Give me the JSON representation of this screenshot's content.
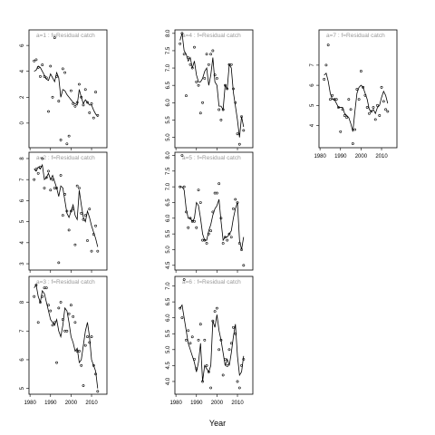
{
  "x_label": "Year",
  "chart_data": [
    {
      "type": "line",
      "title": "a=1 : f=Residual catch",
      "x": [
        1982,
        1983,
        1984,
        1985,
        1986,
        1987,
        1988,
        1989,
        1990,
        1991,
        1992,
        1993,
        1994,
        1995,
        1996,
        1997,
        1998,
        1999,
        2000,
        2001,
        2002,
        2003,
        2004,
        2005,
        2006,
        2007,
        2008,
        2009,
        2010,
        2011,
        2012,
        2013
      ],
      "points": [
        4.8,
        4.9,
        4.3,
        3.6,
        4.5,
        3.6,
        3.5,
        0.9,
        4.4,
        2.0,
        6.6,
        3.6,
        1.7,
        -1.3,
        4.2,
        3.9,
        -1.6,
        -1.0,
        2.5,
        1.5,
        1.3,
        1.6,
        3.0,
        2.0,
        1.4,
        2.6,
        1.6,
        0.8,
        1.5,
        0.4,
        2.4,
        0.6
      ],
      "fit": [
        4.0,
        4.1,
        4.4,
        4.3,
        4.0,
        3.7,
        3.4,
        3.3,
        3.8,
        3.5,
        3.2,
        3.9,
        3.5,
        2.0,
        2.6,
        2.5,
        2.2,
        2.0,
        1.8,
        1.6,
        1.5,
        1.4,
        2.6,
        2.0,
        1.5,
        1.8,
        1.6,
        1.4,
        1.4,
        1.0,
        0.7,
        0.5
      ],
      "xlim": [
        1979.5,
        2017.5
      ],
      "xticks": [
        1980,
        1990,
        2000,
        2010
      ],
      "ylim": [
        -1.9,
        7.2
      ],
      "yticks": [
        0,
        2,
        4,
        6
      ]
    },
    {
      "type": "line",
      "title": "a=2 : f=Residual catch",
      "x": [
        1982,
        1983,
        1984,
        1985,
        1986,
        1987,
        1988,
        1989,
        1990,
        1991,
        1992,
        1993,
        1994,
        1995,
        1996,
        1997,
        1998,
        1999,
        2000,
        2001,
        2002,
        2003,
        2004,
        2005,
        2006,
        2007,
        2008,
        2009,
        2010,
        2011,
        2012,
        2013
      ],
      "points": [
        7.0,
        7.5,
        7.3,
        7.6,
        8.0,
        6.6,
        7.1,
        7.4,
        6.5,
        7.0,
        6.6,
        6.6,
        3.05,
        7.2,
        5.3,
        6.3,
        5.5,
        4.6,
        5.5,
        5.6,
        3.9,
        6.7,
        6.6,
        5.4,
        5.1,
        5.3,
        4.1,
        5.6,
        3.6,
        4.4,
        4.8,
        3.6
      ],
      "fit": [
        7.5,
        7.4,
        7.6,
        7.5,
        7.7,
        7.0,
        7.1,
        7.3,
        7.0,
        7.2,
        6.9,
        6.6,
        6.2,
        6.7,
        6.6,
        6.0,
        5.4,
        5.2,
        5.5,
        5.8,
        5.3,
        5.1,
        6.5,
        5.8,
        5.2,
        5.0,
        5.5,
        5.2,
        4.8,
        4.5,
        4.2,
        3.8
      ],
      "xlim": [
        1979.5,
        2017.5
      ],
      "xticks": [
        1980,
        1990,
        2000,
        2010
      ],
      "ylim": [
        2.7,
        8.3
      ],
      "yticks": [
        3,
        4,
        5,
        6,
        7,
        8
      ]
    },
    {
      "type": "line",
      "title": "a=3 : f=Residual catch",
      "x": [
        1982,
        1983,
        1984,
        1985,
        1986,
        1987,
        1988,
        1989,
        1990,
        1991,
        1992,
        1993,
        1994,
        1995,
        1996,
        1997,
        1998,
        1999,
        2000,
        2001,
        2002,
        2003,
        2004,
        2005,
        2006,
        2007,
        2008,
        2009,
        2010,
        2011,
        2012,
        2013
      ],
      "points": [
        8.2,
        8.6,
        7.3,
        8.0,
        8.2,
        8.5,
        8.5,
        7.9,
        7.7,
        7.2,
        7.3,
        5.9,
        7.8,
        8.0,
        7.4,
        7.0,
        7.0,
        7.6,
        7.9,
        7.5,
        7.3,
        6.3,
        6.3,
        5.8,
        5.1,
        6.5,
        6.8,
        6.6,
        6.8,
        5.8,
        5.5,
        4.9
      ],
      "fit": [
        8.5,
        8.6,
        8.2,
        8.0,
        8.4,
        8.3,
        8.0,
        7.7,
        7.4,
        7.3,
        7.2,
        7.4,
        7.0,
        6.8,
        7.2,
        7.8,
        7.7,
        7.3,
        6.8,
        6.6,
        6.3,
        6.4,
        5.9,
        6.0,
        6.5,
        7.0,
        7.3,
        6.8,
        6.0,
        5.8,
        5.6,
        5.0
      ],
      "xlim": [
        1979.5,
        2017.5
      ],
      "xticks": [
        1980,
        1990,
        2000,
        2010
      ],
      "ylim": [
        4.8,
        8.9
      ],
      "yticks": [
        5,
        6,
        7,
        8
      ]
    },
    {
      "type": "line",
      "title": "a=4 : f=Residual catch",
      "x": [
        1982,
        1983,
        1984,
        1985,
        1986,
        1987,
        1988,
        1989,
        1990,
        1991,
        1992,
        1993,
        1994,
        1995,
        1996,
        1997,
        1998,
        1999,
        2000,
        2001,
        2002,
        2003,
        2004,
        2005,
        2006,
        2007,
        2008,
        2009,
        2010,
        2011,
        2012,
        2013
      ],
      "points": [
        7.7,
        8.0,
        7.4,
        6.2,
        7.3,
        7.1,
        7.0,
        7.6,
        6.6,
        6.5,
        5.7,
        6.0,
        6.7,
        7.4,
        7.1,
        7.4,
        7.5,
        6.8,
        6.7,
        5.8,
        5.5,
        5.8,
        6.5,
        6.4,
        7.1,
        7.1,
        6.4,
        6.0,
        5.1,
        4.8,
        5.6,
        5.2
      ],
      "fit": [
        7.8,
        8.0,
        7.5,
        7.4,
        7.2,
        7.3,
        7.0,
        7.2,
        6.8,
        6.6,
        6.6,
        6.7,
        6.9,
        7.0,
        6.5,
        6.8,
        7.3,
        6.6,
        6.5,
        5.9,
        5.9,
        5.8,
        6.5,
        6.4,
        7.1,
        7.0,
        6.3,
        5.9,
        5.5,
        5.0,
        5.6,
        5.3
      ],
      "xlim": [
        1979.5,
        2017.5
      ],
      "xticks": [
        1980,
        1990,
        2000,
        2010
      ],
      "ylim": [
        4.7,
        8.1
      ],
      "yticks": [
        {
          "value": 5,
          "label": "5.0"
        },
        5.5,
        {
          "value": 6,
          "label": "6.0"
        },
        6.5,
        {
          "value": 7,
          "label": "7.0"
        },
        7.5,
        {
          "value": 8,
          "label": "8.0"
        }
      ]
    },
    {
      "type": "line",
      "title": "a=5 : f=Residual catch",
      "x": [
        1982,
        1983,
        1984,
        1985,
        1986,
        1987,
        1988,
        1989,
        1990,
        1991,
        1992,
        1993,
        1994,
        1995,
        1996,
        1997,
        1998,
        1999,
        2000,
        2001,
        2002,
        2003,
        2004,
        2005,
        2006,
        2007,
        2008,
        2009,
        2010,
        2011,
        2012,
        2013
      ],
      "points": [
        7.0,
        8.0,
        7.0,
        6.2,
        5.7,
        6.0,
        5.9,
        5.9,
        5.7,
        6.9,
        6.5,
        5.3,
        5.3,
        5.2,
        5.5,
        5.6,
        6.2,
        6.8,
        6.8,
        7.1,
        6.0,
        5.2,
        5.4,
        5.3,
        5.5,
        5.4,
        6.3,
        6.6,
        6.5,
        5.2,
        5.0,
        4.5
      ],
      "fit": [
        7.0,
        7.0,
        6.9,
        6.3,
        6.0,
        6.0,
        5.9,
        6.0,
        6.5,
        6.4,
        6.0,
        5.5,
        5.3,
        5.3,
        5.6,
        5.8,
        6.1,
        6.3,
        6.4,
        6.6,
        5.9,
        5.3,
        5.4,
        5.4,
        5.5,
        5.6,
        6.0,
        6.3,
        6.5,
        5.3,
        5.0,
        5.4
      ],
      "xlim": [
        1979.5,
        2017.5
      ],
      "xticks": [
        1980,
        1990,
        2000,
        2010
      ],
      "ylim": [
        4.35,
        8.1
      ],
      "yticks": [
        4.5,
        {
          "value": 5,
          "label": "5.0"
        },
        5.5,
        {
          "value": 6,
          "label": "6.0"
        },
        6.5,
        {
          "value": 7,
          "label": "7.0"
        },
        7.5,
        {
          "value": 8,
          "label": "8.0"
        }
      ]
    },
    {
      "type": "line",
      "title": "a=6 : f=Residual catch",
      "x": [
        1982,
        1983,
        1984,
        1985,
        1986,
        1987,
        1988,
        1989,
        1990,
        1991,
        1992,
        1993,
        1994,
        1995,
        1996,
        1997,
        1998,
        1999,
        2000,
        2001,
        2002,
        2003,
        2004,
        2005,
        2006,
        2007,
        2008,
        2009,
        2010,
        2011,
        2012,
        2013
      ],
      "points": [
        6.3,
        6.0,
        7.2,
        5.3,
        5.6,
        5.2,
        5.4,
        4.7,
        4.4,
        5.3,
        5.8,
        4.0,
        5.3,
        4.5,
        4.3,
        3.8,
        5.9,
        6.2,
        6.3,
        5.0,
        5.3,
        4.2,
        4.7,
        4.5,
        5.0,
        5.2,
        5.7,
        5.5,
        4.0,
        3.8,
        4.5,
        4.7
      ],
      "fit": [
        6.3,
        6.4,
        6.0,
        5.6,
        5.2,
        5.0,
        4.8,
        4.6,
        4.3,
        4.6,
        5.2,
        4.0,
        4.5,
        4.4,
        4.3,
        4.5,
        5.9,
        5.7,
        6.1,
        5.6,
        5.3,
        4.9,
        4.5,
        4.7,
        4.5,
        4.9,
        5.4,
        5.8,
        4.8,
        4.2,
        4.3,
        4.8
      ],
      "xlim": [
        1979.5,
        2017.5
      ],
      "xticks": [
        1980,
        1990,
        2000,
        2010
      ],
      "ylim": [
        3.6,
        7.3
      ],
      "yticks": [
        {
          "value": 4,
          "label": "4.0"
        },
        4.5,
        {
          "value": 5,
          "label": "5.0"
        },
        5.5,
        {
          "value": 6,
          "label": "6.0"
        },
        6.5,
        {
          "value": 7,
          "label": "7.0"
        }
      ]
    },
    {
      "type": "line",
      "title": "a=7 : f=Residual catch",
      "x": [
        1982,
        1983,
        1984,
        1985,
        1986,
        1987,
        1988,
        1989,
        1990,
        1991,
        1992,
        1993,
        1994,
        1995,
        1996,
        1997,
        1998,
        1999,
        2000,
        2001,
        2002,
        2003,
        2004,
        2005,
        2006,
        2007,
        2008,
        2009,
        2010,
        2011,
        2012,
        2013
      ],
      "points": [
        6.3,
        7.0,
        8.0,
        5.3,
        5.5,
        5.3,
        5.3,
        4.9,
        3.7,
        4.8,
        4.5,
        4.4,
        5.3,
        4.8,
        3.1,
        3.8,
        5.8,
        5.3,
        6.7,
        5.9,
        5.5,
        4.9,
        4.6,
        4.7,
        4.9,
        4.3,
        5.0,
        4.5,
        5.9,
        5.2,
        4.8,
        4.7
      ],
      "fit": [
        6.5,
        6.6,
        6.2,
        5.6,
        5.3,
        5.3,
        5.1,
        4.9,
        4.9,
        4.9,
        4.6,
        4.5,
        4.4,
        4.1,
        3.7,
        4.7,
        5.6,
        5.9,
        6.0,
        5.9,
        5.6,
        5.3,
        4.8,
        4.7,
        4.8,
        4.6,
        4.9,
        5.0,
        5.4,
        5.7,
        5.5,
        5.1
      ],
      "xlim": [
        1979.5,
        2017.5
      ],
      "xticks": [
        1980,
        1990,
        2000,
        2010
      ],
      "ylim": [
        2.9,
        8.75
      ],
      "yticks": [
        4,
        5,
        6,
        7
      ]
    }
  ]
}
